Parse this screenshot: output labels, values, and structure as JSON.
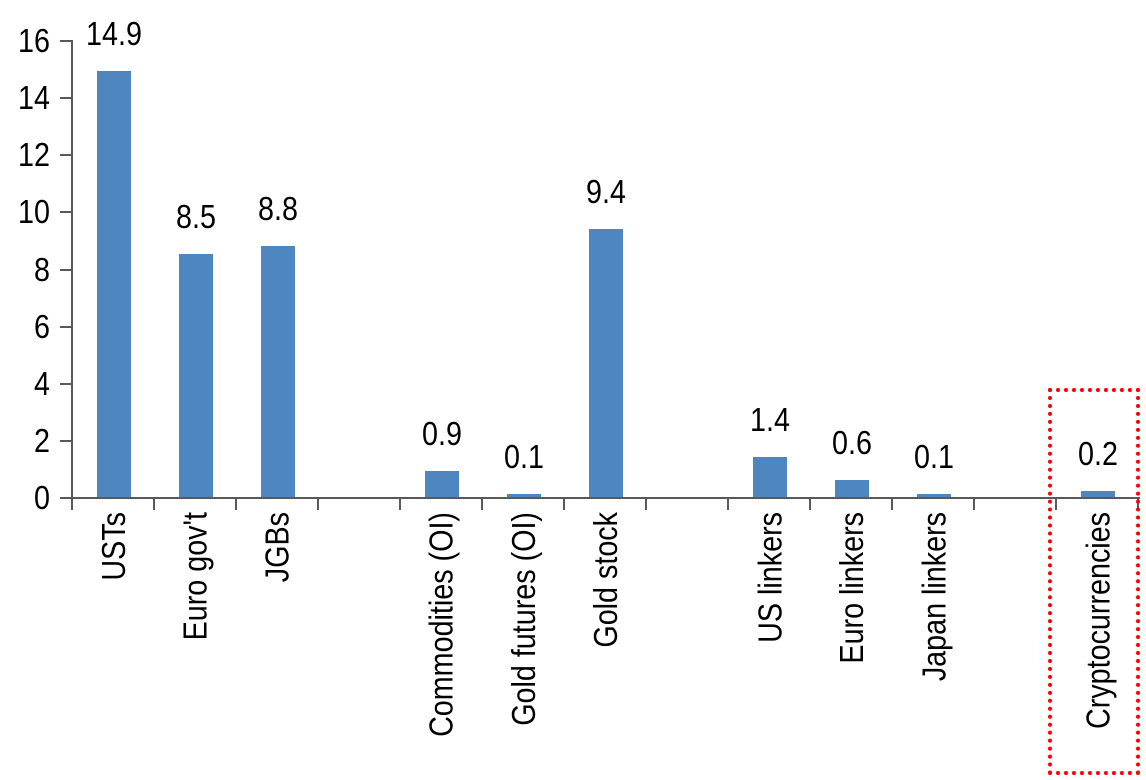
{
  "chart_data": {
    "type": "bar",
    "title": "",
    "xlabel": "",
    "ylabel": "",
    "ylim": [
      0,
      16
    ],
    "ytick_step": 2,
    "ytick_labels": [
      "0",
      "2",
      "4",
      "6",
      "8",
      "10",
      "12",
      "14",
      "16"
    ],
    "grid": "off",
    "legend": "none",
    "bar_color": "#4E86C0",
    "axis_color": "#595959",
    "label_color": "#000000",
    "value_label_decimals": 1,
    "groups": [
      {
        "items": [
          {
            "label": "USTs",
            "value": 14.9,
            "value_label": "14.9"
          },
          {
            "label": "Euro gov't",
            "value": 8.5,
            "value_label": "8.5"
          },
          {
            "label": "JGBs",
            "value": 8.8,
            "value_label": "8.8"
          }
        ]
      },
      {
        "items": [
          {
            "label": "Commodities (OI)",
            "value": 0.9,
            "value_label": "0.9"
          },
          {
            "label": "Gold futures (OI)",
            "value": 0.1,
            "value_label": "0.1"
          },
          {
            "label": "Gold stock",
            "value": 9.4,
            "value_label": "9.4"
          }
        ]
      },
      {
        "items": [
          {
            "label": "US linkers",
            "value": 1.4,
            "value_label": "1.4"
          },
          {
            "label": "Euro linkers",
            "value": 0.6,
            "value_label": "0.6"
          },
          {
            "label": "Japan linkers",
            "value": 0.1,
            "value_label": "0.1"
          }
        ]
      },
      {
        "items": [
          {
            "label": "Cryptocurrencies",
            "value": 0.2,
            "value_label": "0.2",
            "highlighted": true
          }
        ]
      }
    ],
    "highlight": {
      "target": "Cryptocurrencies",
      "style": "dotted-box",
      "color": "#FF0000"
    }
  }
}
